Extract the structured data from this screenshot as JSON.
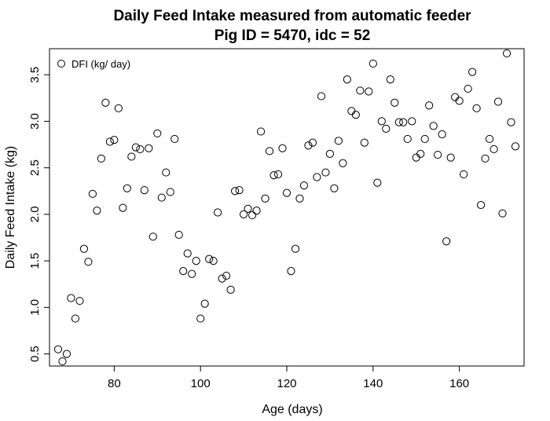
{
  "chart_data": {
    "type": "scatter",
    "title": "Daily Feed Intake measured from automatic feeder",
    "subtitle": "Pig ID = 5470, idc = 52",
    "xlabel": "Age (days)",
    "ylabel": "Daily Feed Intake (kg)",
    "xlim": [
      65,
      175
    ],
    "ylim": [
      0.37,
      3.78
    ],
    "xticks": [
      80,
      100,
      120,
      140,
      160
    ],
    "yticks": [
      0.5,
      1.0,
      1.5,
      2.0,
      2.5,
      3.0,
      3.5
    ],
    "grid": false,
    "legend": {
      "position": "top-left",
      "entries": [
        "DFI (kg/ day)"
      ]
    },
    "series": [
      {
        "name": "DFI (kg/ day)",
        "marker": "open-circle",
        "points": [
          [
            67,
            0.55
          ],
          [
            68,
            0.42
          ],
          [
            69,
            0.5
          ],
          [
            70,
            1.1
          ],
          [
            71,
            0.88
          ],
          [
            72,
            1.07
          ],
          [
            73,
            1.63
          ],
          [
            74,
            1.49
          ],
          [
            75,
            2.22
          ],
          [
            76,
            2.04
          ],
          [
            77,
            2.6
          ],
          [
            78,
            3.2
          ],
          [
            79,
            2.78
          ],
          [
            80,
            2.8
          ],
          [
            81,
            3.14
          ],
          [
            82,
            2.07
          ],
          [
            83,
            2.28
          ],
          [
            84,
            2.62
          ],
          [
            85,
            2.72
          ],
          [
            86,
            2.7
          ],
          [
            87,
            2.26
          ],
          [
            88,
            2.71
          ],
          [
            89,
            1.76
          ],
          [
            90,
            2.87
          ],
          [
            91,
            2.18
          ],
          [
            92,
            2.45
          ],
          [
            93,
            2.24
          ],
          [
            94,
            2.81
          ],
          [
            95,
            1.78
          ],
          [
            96,
            1.39
          ],
          [
            97,
            1.58
          ],
          [
            98,
            1.36
          ],
          [
            99,
            1.5
          ],
          [
            100,
            0.88
          ],
          [
            101,
            1.04
          ],
          [
            102,
            1.52
          ],
          [
            103,
            1.5
          ],
          [
            104,
            2.02
          ],
          [
            105,
            1.31
          ],
          [
            106,
            1.34
          ],
          [
            107,
            1.19
          ],
          [
            108,
            2.25
          ],
          [
            109,
            2.26
          ],
          [
            110,
            2.0
          ],
          [
            111,
            2.06
          ],
          [
            112,
            1.99
          ],
          [
            113,
            2.04
          ],
          [
            114,
            2.89
          ],
          [
            115,
            2.17
          ],
          [
            116,
            2.68
          ],
          [
            117,
            2.42
          ],
          [
            118,
            2.43
          ],
          [
            119,
            2.71
          ],
          [
            120,
            2.23
          ],
          [
            121,
            1.39
          ],
          [
            122,
            1.63
          ],
          [
            123,
            2.17
          ],
          [
            124,
            2.31
          ],
          [
            125,
            2.74
          ],
          [
            126,
            2.77
          ],
          [
            127,
            2.4
          ],
          [
            128,
            3.27
          ],
          [
            129,
            2.45
          ],
          [
            130,
            2.65
          ],
          [
            131,
            2.28
          ],
          [
            132,
            2.79
          ],
          [
            133,
            2.55
          ],
          [
            134,
            3.45
          ],
          [
            135,
            3.11
          ],
          [
            136,
            3.07
          ],
          [
            137,
            3.33
          ],
          [
            138,
            2.77
          ],
          [
            139,
            3.32
          ],
          [
            140,
            3.62
          ],
          [
            141,
            2.34
          ],
          [
            142,
            3.0
          ],
          [
            143,
            2.92
          ],
          [
            144,
            3.45
          ],
          [
            145,
            3.2
          ],
          [
            146,
            2.99
          ],
          [
            147,
            2.99
          ],
          [
            148,
            2.81
          ],
          [
            149,
            3.0
          ],
          [
            150,
            2.61
          ],
          [
            151,
            2.65
          ],
          [
            152,
            2.81
          ],
          [
            153,
            3.17
          ],
          [
            154,
            2.95
          ],
          [
            155,
            2.64
          ],
          [
            156,
            2.86
          ],
          [
            157,
            1.71
          ],
          [
            158,
            2.61
          ],
          [
            159,
            3.26
          ],
          [
            160,
            3.22
          ],
          [
            161,
            2.43
          ],
          [
            162,
            3.35
          ],
          [
            163,
            3.53
          ],
          [
            164,
            3.14
          ],
          [
            165,
            2.1
          ],
          [
            166,
            2.6
          ],
          [
            167,
            2.81
          ],
          [
            168,
            2.7
          ],
          [
            169,
            3.21
          ],
          [
            170,
            2.01
          ],
          [
            171,
            3.73
          ],
          [
            172,
            2.99
          ],
          [
            173,
            2.73
          ]
        ]
      }
    ]
  }
}
